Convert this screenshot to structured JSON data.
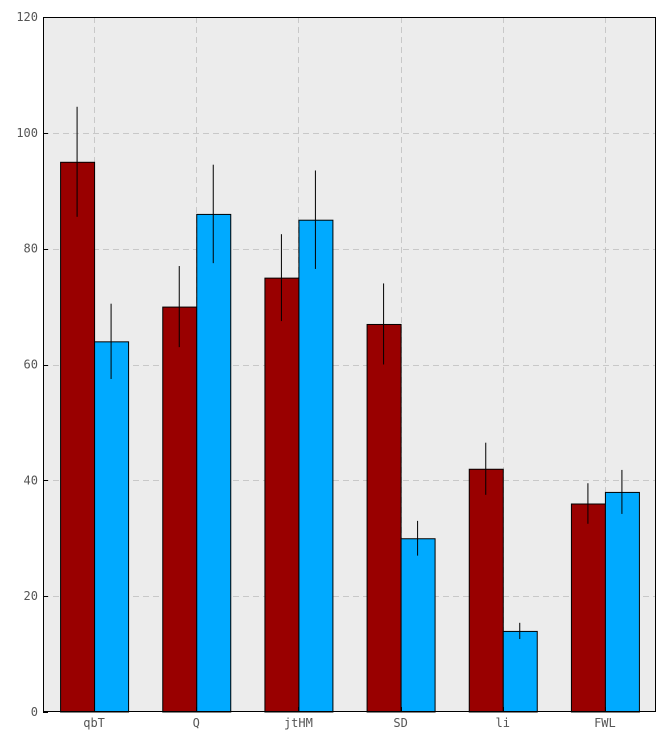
{
  "chart_data": {
    "type": "bar",
    "title": "",
    "xlabel": "",
    "ylabel": "",
    "categories": [
      "qbT",
      "Q",
      "jtHM",
      "SD",
      "li",
      "FWL"
    ],
    "series": [
      {
        "color": "#990000",
        "values": [
          95,
          70,
          75,
          67,
          42,
          36
        ],
        "errors": [
          9.5,
          7,
          7.5,
          7,
          4.5,
          3.5
        ]
      },
      {
        "color": "#00aaff",
        "values": [
          64,
          86,
          85,
          30,
          14,
          38
        ],
        "errors": [
          6.5,
          8.5,
          8.5,
          3,
          1.4,
          3.8
        ]
      }
    ],
    "ylim": [
      0,
      120
    ],
    "yticks": [
      0,
      20,
      40,
      60,
      80,
      100,
      120
    ],
    "grid": true,
    "legend": "none"
  },
  "colors": {
    "plot_background": "#ececec",
    "grid": "#c8c8c8",
    "error_bar": "#000000"
  }
}
